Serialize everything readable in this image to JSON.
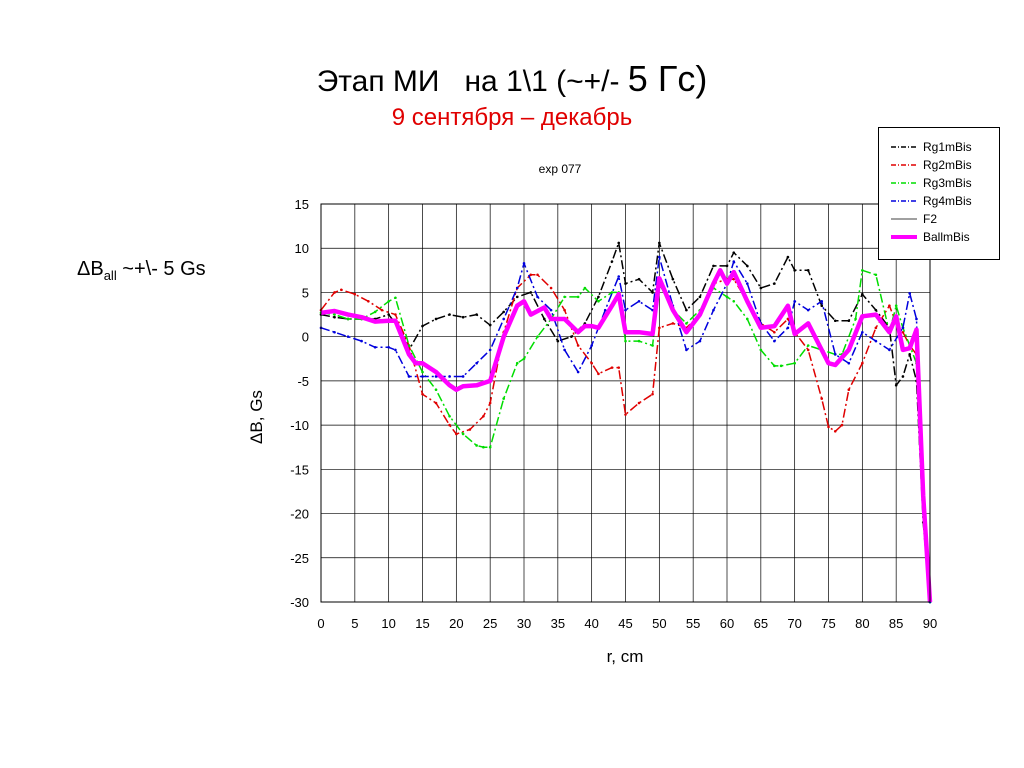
{
  "slide": {
    "title_main": "Этап МИ   на 1\\1 (~+/- ",
    "title_big": "5 Гс)",
    "subtitle": "9 сентября – декабрь",
    "side_note_delta": "ΔB",
    "side_note_sub": "all",
    "side_note_rest": " ~+\\- 5 Gs"
  },
  "chart_data": {
    "type": "line",
    "title": "exp 077",
    "xlabel": "r, cm",
    "ylabel": "ΔB, Gs",
    "xlim": [
      0,
      90
    ],
    "ylim": [
      -30,
      15
    ],
    "xticks": [
      0,
      5,
      10,
      15,
      20,
      25,
      30,
      35,
      40,
      45,
      50,
      55,
      60,
      65,
      70,
      75,
      80,
      85,
      90
    ],
    "yticks": [
      15,
      10,
      5,
      0,
      -5,
      -10,
      -15,
      -20,
      -25,
      -30
    ],
    "grid": true,
    "legend_position": "top-right",
    "series": [
      {
        "name": "Rg1mBis",
        "color": "#000000",
        "dash": "9,3,2,3",
        "width": 1.5,
        "marker": true,
        "points": [
          [
            0,
            2.5
          ],
          [
            2,
            2.2
          ],
          [
            4,
            2.0
          ],
          [
            6,
            2.0
          ],
          [
            8,
            2.0
          ],
          [
            10,
            2.5
          ],
          [
            12,
            0.5
          ],
          [
            13,
            -1.5
          ],
          [
            15,
            1.2
          ],
          [
            17,
            2.0
          ],
          [
            19,
            2.5
          ],
          [
            21,
            2.2
          ],
          [
            23,
            2.5
          ],
          [
            25,
            1.3
          ],
          [
            27,
            2.8
          ],
          [
            29,
            4.5
          ],
          [
            31,
            5.0
          ],
          [
            33,
            2.0
          ],
          [
            35,
            -0.5
          ],
          [
            37,
            0.0
          ],
          [
            39,
            1.5
          ],
          [
            41,
            4.5
          ],
          [
            43,
            8.5
          ],
          [
            44,
            10.6
          ],
          [
            45,
            6.0
          ],
          [
            47,
            6.5
          ],
          [
            49,
            5.0
          ],
          [
            50,
            10.6
          ],
          [
            52,
            6.5
          ],
          [
            54,
            3.0
          ],
          [
            56,
            4.5
          ],
          [
            58,
            8.0
          ],
          [
            60,
            8.0
          ],
          [
            61,
            9.5
          ],
          [
            63,
            8.0
          ],
          [
            65,
            5.5
          ],
          [
            67,
            6.0
          ],
          [
            69,
            9.0
          ],
          [
            70,
            7.5
          ],
          [
            72,
            7.5
          ],
          [
            74,
            3.5
          ],
          [
            76,
            1.8
          ],
          [
            78,
            1.8
          ],
          [
            80,
            4.8
          ],
          [
            82,
            3.0
          ],
          [
            84,
            1.0
          ],
          [
            85,
            -5.5
          ],
          [
            86,
            -4.5
          ],
          [
            87,
            -2.0
          ],
          [
            88,
            -5.0
          ],
          [
            89,
            -21
          ],
          [
            90,
            -30
          ]
        ]
      },
      {
        "name": "Rg2mBis",
        "color": "#e00000",
        "dash": "9,3,2,3",
        "width": 1.5,
        "marker": true,
        "points": [
          [
            0,
            3.0
          ],
          [
            2,
            5.0
          ],
          [
            3,
            5.3
          ],
          [
            5,
            4.8
          ],
          [
            7,
            4.0
          ],
          [
            9,
            3.0
          ],
          [
            11,
            2.5
          ],
          [
            13,
            -1.0
          ],
          [
            15,
            -6.5
          ],
          [
            17,
            -7.5
          ],
          [
            19,
            -10.0
          ],
          [
            20,
            -11.0
          ],
          [
            22,
            -10.5
          ],
          [
            24,
            -9.0
          ],
          [
            25,
            -7.5
          ],
          [
            27,
            0.5
          ],
          [
            29,
            5.5
          ],
          [
            31,
            7.0
          ],
          [
            32,
            7.0
          ],
          [
            34,
            5.5
          ],
          [
            36,
            3.0
          ],
          [
            38,
            -1.0
          ],
          [
            40,
            -3.0
          ],
          [
            41,
            -4.2
          ],
          [
            43,
            -3.5
          ],
          [
            44,
            -3.5
          ],
          [
            45,
            -8.8
          ],
          [
            47,
            -7.5
          ],
          [
            49,
            -6.5
          ],
          [
            50,
            1.0
          ],
          [
            52,
            1.5
          ],
          [
            54,
            1.0
          ],
          [
            56,
            2.5
          ],
          [
            58,
            6.0
          ],
          [
            60,
            6.5
          ],
          [
            61,
            6.5
          ],
          [
            63,
            4.0
          ],
          [
            65,
            1.5
          ],
          [
            67,
            0.5
          ],
          [
            69,
            2.0
          ],
          [
            70,
            0.5
          ],
          [
            72,
            -1.5
          ],
          [
            74,
            -7.0
          ],
          [
            75,
            -10.2
          ],
          [
            76,
            -10.7
          ],
          [
            77,
            -10.0
          ],
          [
            78,
            -6.0
          ],
          [
            80,
            -3.0
          ],
          [
            82,
            1.0
          ],
          [
            84,
            3.5
          ],
          [
            85,
            1.5
          ],
          [
            86,
            0.5
          ],
          [
            87,
            -1.0
          ],
          [
            88,
            -2.0
          ],
          [
            89,
            -20
          ],
          [
            90,
            -29.5
          ]
        ]
      },
      {
        "name": "Rg3mBis",
        "color": "#00dd00",
        "dash": "9,3,2,3",
        "width": 1.5,
        "marker": true,
        "points": [
          [
            0,
            2.7
          ],
          [
            2,
            2.5
          ],
          [
            4,
            2.0
          ],
          [
            6,
            2.0
          ],
          [
            8,
            2.8
          ],
          [
            10,
            4.0
          ],
          [
            11,
            4.4
          ],
          [
            13,
            -1.0
          ],
          [
            15,
            -4.0
          ],
          [
            17,
            -6.0
          ],
          [
            19,
            -9.0
          ],
          [
            21,
            -11.0
          ],
          [
            23,
            -12.3
          ],
          [
            24,
            -12.5
          ],
          [
            25,
            -12.5
          ],
          [
            27,
            -7.0
          ],
          [
            29,
            -3.0
          ],
          [
            30,
            -2.5
          ],
          [
            32,
            0.0
          ],
          [
            34,
            2.0
          ],
          [
            36,
            4.5
          ],
          [
            38,
            4.5
          ],
          [
            39,
            5.5
          ],
          [
            41,
            4.0
          ],
          [
            43,
            5.0
          ],
          [
            44,
            5.0
          ],
          [
            45,
            -0.5
          ],
          [
            47,
            -0.5
          ],
          [
            49,
            -1.0
          ],
          [
            50,
            6.0
          ],
          [
            52,
            3.0
          ],
          [
            54,
            1.5
          ],
          [
            56,
            3.0
          ],
          [
            58,
            5.5
          ],
          [
            60,
            4.5
          ],
          [
            61,
            4.0
          ],
          [
            63,
            2.0
          ],
          [
            65,
            -1.5
          ],
          [
            67,
            -3.3
          ],
          [
            68,
            -3.3
          ],
          [
            70,
            -3.0
          ],
          [
            72,
            -1.0
          ],
          [
            74,
            -1.5
          ],
          [
            76,
            -2.0
          ],
          [
            77,
            -2.0
          ],
          [
            79,
            2.0
          ],
          [
            80,
            7.5
          ],
          [
            82,
            7.0
          ],
          [
            84,
            0.5
          ],
          [
            85,
            3.5
          ],
          [
            86,
            1.0
          ],
          [
            87,
            -1.0
          ],
          [
            88,
            -3.0
          ],
          [
            89,
            -20
          ],
          [
            90,
            -30
          ]
        ]
      },
      {
        "name": "Rg4mBis",
        "color": "#0000dd",
        "dash": "9,3,2,3",
        "width": 1.5,
        "marker": true,
        "points": [
          [
            0,
            1.0
          ],
          [
            2,
            0.5
          ],
          [
            4,
            0.0
          ],
          [
            6,
            -0.5
          ],
          [
            8,
            -1.2
          ],
          [
            10,
            -1.2
          ],
          [
            11,
            -1.5
          ],
          [
            13,
            -4.5
          ],
          [
            15,
            -4.5
          ],
          [
            17,
            -4.5
          ],
          [
            19,
            -4.5
          ],
          [
            21,
            -4.5
          ],
          [
            23,
            -3.0
          ],
          [
            25,
            -1.5
          ],
          [
            27,
            2.0
          ],
          [
            29,
            5.5
          ],
          [
            30,
            8.3
          ],
          [
            32,
            4.5
          ],
          [
            34,
            3.0
          ],
          [
            36,
            -1.5
          ],
          [
            38,
            -4.0
          ],
          [
            40,
            -1.0
          ],
          [
            42,
            3.0
          ],
          [
            44,
            6.8
          ],
          [
            45,
            3.0
          ],
          [
            47,
            4.0
          ],
          [
            49,
            3.0
          ],
          [
            50,
            9.0
          ],
          [
            52,
            3.5
          ],
          [
            54,
            -1.5
          ],
          [
            56,
            -0.5
          ],
          [
            58,
            3.0
          ],
          [
            60,
            6.0
          ],
          [
            61,
            8.5
          ],
          [
            63,
            6.0
          ],
          [
            65,
            1.5
          ],
          [
            67,
            -0.5
          ],
          [
            69,
            1.0
          ],
          [
            70,
            4.0
          ],
          [
            72,
            3.0
          ],
          [
            74,
            4.0
          ],
          [
            76,
            -2.0
          ],
          [
            78,
            -3.0
          ],
          [
            80,
            0.5
          ],
          [
            82,
            -0.5
          ],
          [
            84,
            -1.5
          ],
          [
            86,
            1.0
          ],
          [
            87,
            4.9
          ],
          [
            88,
            2.0
          ],
          [
            89,
            -20
          ],
          [
            90,
            -30
          ]
        ]
      },
      {
        "name": "F2",
        "color": "#000000",
        "dash": "",
        "width": 0.8,
        "marker": false,
        "points": []
      },
      {
        "name": "BallmBis",
        "color": "#ff00ff",
        "dash": "",
        "width": 4.5,
        "marker": false,
        "points": [
          [
            0,
            2.7
          ],
          [
            2,
            2.9
          ],
          [
            4,
            2.5
          ],
          [
            6,
            2.2
          ],
          [
            8,
            1.7
          ],
          [
            10,
            1.8
          ],
          [
            11,
            1.8
          ],
          [
            13,
            -2.0
          ],
          [
            14,
            -3.0
          ],
          [
            15,
            -3.0
          ],
          [
            17,
            -4.0
          ],
          [
            19,
            -5.5
          ],
          [
            20,
            -6.0
          ],
          [
            21,
            -5.6
          ],
          [
            23,
            -5.5
          ],
          [
            25,
            -5.0
          ],
          [
            27,
            0.0
          ],
          [
            29,
            3.5
          ],
          [
            30,
            4.0
          ],
          [
            31,
            2.5
          ],
          [
            33,
            3.3
          ],
          [
            34,
            2.0
          ],
          [
            36,
            2.0
          ],
          [
            38,
            0.5
          ],
          [
            39,
            1.2
          ],
          [
            40,
            1.2
          ],
          [
            41,
            1.0
          ],
          [
            43,
            3.5
          ],
          [
            44,
            4.8
          ],
          [
            45,
            0.5
          ],
          [
            47,
            0.5
          ],
          [
            49,
            0.3
          ],
          [
            50,
            6.6
          ],
          [
            52,
            3.0
          ],
          [
            54,
            0.5
          ],
          [
            56,
            2.5
          ],
          [
            58,
            6.0
          ],
          [
            59,
            7.5
          ],
          [
            60,
            6.0
          ],
          [
            61,
            7.3
          ],
          [
            63,
            4.0
          ],
          [
            65,
            1.0
          ],
          [
            67,
            1.2
          ],
          [
            69,
            3.5
          ],
          [
            70,
            0.3
          ],
          [
            72,
            1.5
          ],
          [
            74,
            -1.5
          ],
          [
            75,
            -3.0
          ],
          [
            76,
            -3.2
          ],
          [
            78,
            -1.5
          ],
          [
            80,
            2.3
          ],
          [
            82,
            2.5
          ],
          [
            83,
            1.5
          ],
          [
            84,
            0.5
          ],
          [
            85,
            2.3
          ],
          [
            86,
            -1.5
          ],
          [
            87,
            -1.3
          ],
          [
            88,
            0.8
          ],
          [
            89,
            -18
          ],
          [
            90,
            -30
          ]
        ]
      }
    ]
  }
}
